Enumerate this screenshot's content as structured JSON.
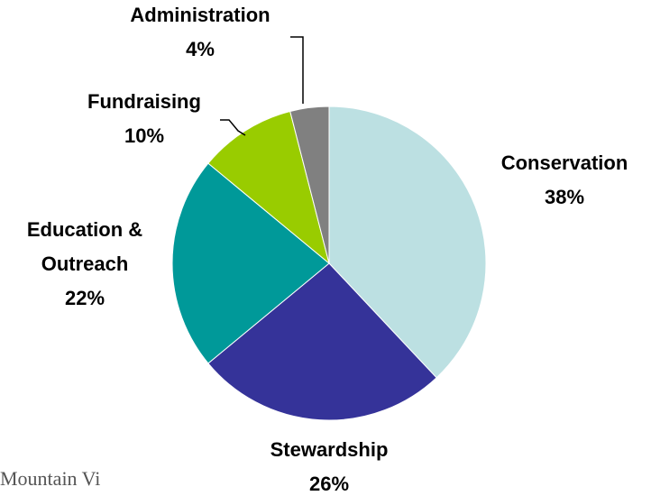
{
  "chart_data": {
    "type": "pie",
    "title": "",
    "slices": [
      {
        "name": "Conservation",
        "label_lines": [
          "Conservation"
        ],
        "percent_label": "38%",
        "value": 38,
        "color": "#bce0e2"
      },
      {
        "name": "Stewardship",
        "label_lines": [
          "Stewardship"
        ],
        "percent_label": "26%",
        "value": 26,
        "color": "#353399"
      },
      {
        "name": "Education & Outreach",
        "label_lines": [
          "Education &",
          "Outreach"
        ],
        "percent_label": "22%",
        "value": 22,
        "color": "#009999"
      },
      {
        "name": "Fundraising",
        "label_lines": [
          "Fundraising"
        ],
        "percent_label": "10%",
        "value": 10,
        "color": "#99cc00"
      },
      {
        "name": "Administration",
        "label_lines": [
          "Administration"
        ],
        "percent_label": "4%",
        "value": 4,
        "color": "#808080"
      }
    ]
  },
  "footer": {
    "partial_text": "Mountain Vi"
  }
}
